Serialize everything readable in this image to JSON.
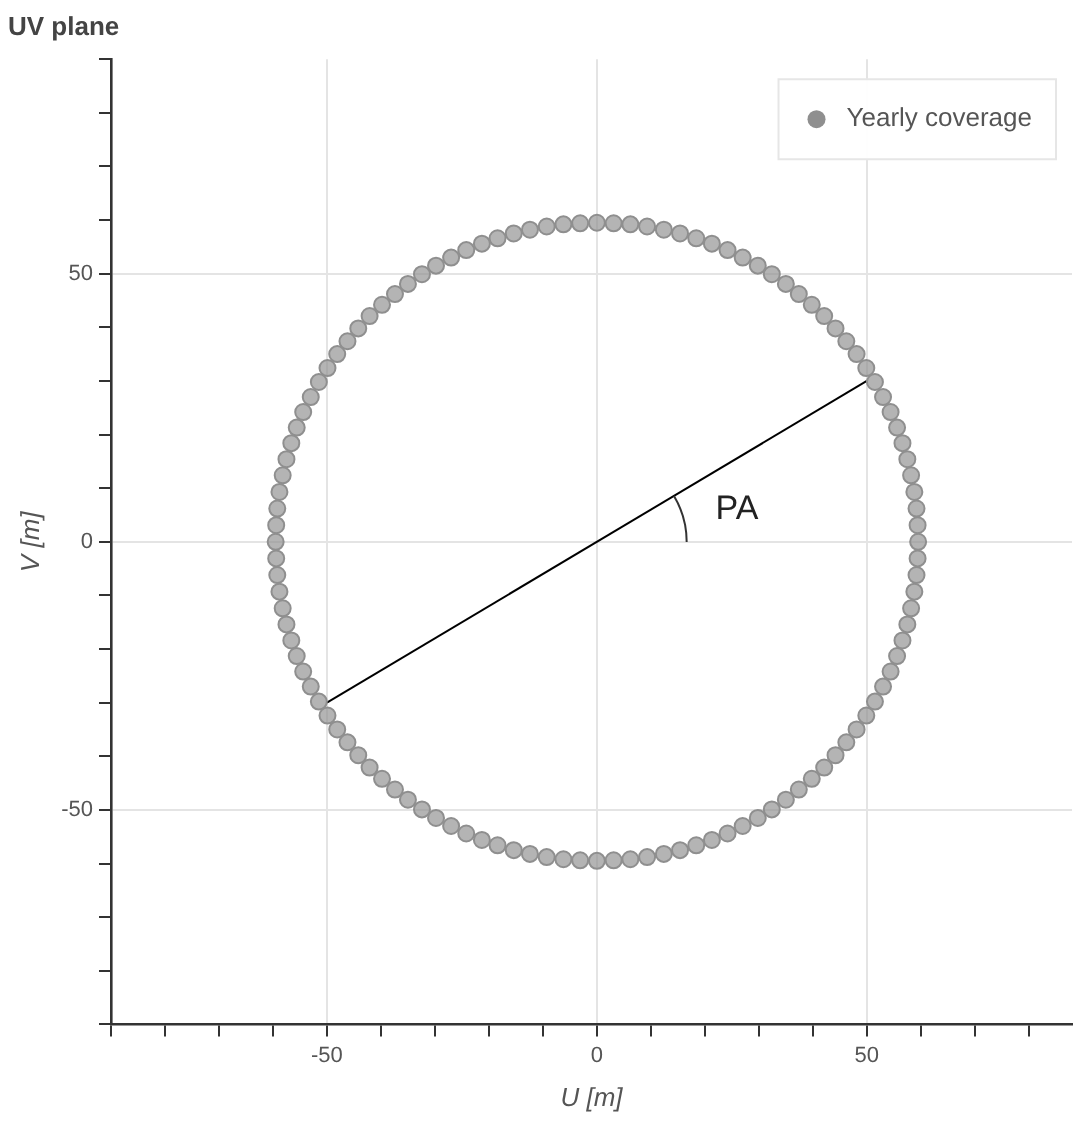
{
  "chart_data": {
    "type": "scatter",
    "title": "UV plane",
    "xlabel": "U [m]",
    "ylabel": "V [m]",
    "xlim": [
      -90,
      88
    ],
    "ylim": [
      -90,
      90
    ],
    "xticks": [
      {
        "value": -90,
        "label": null
      },
      {
        "value": -80,
        "label": null
      },
      {
        "value": -70,
        "label": null
      },
      {
        "value": -60,
        "label": null
      },
      -50,
      {
        "value": -40,
        "label": null
      },
      {
        "value": -30,
        "label": null
      },
      {
        "value": -20,
        "label": null
      },
      {
        "value": -10,
        "label": null
      },
      0,
      {
        "value": 10,
        "label": null
      },
      {
        "value": 20,
        "label": null
      },
      {
        "value": 30,
        "label": null
      },
      {
        "value": 40,
        "label": null
      },
      50,
      {
        "value": 60,
        "label": null
      },
      {
        "value": 70,
        "label": null
      },
      {
        "value": 80,
        "label": null
      }
    ],
    "yticks": [
      {
        "value": -90,
        "label": null
      },
      {
        "value": -80,
        "label": null
      },
      {
        "value": -70,
        "label": null
      },
      {
        "value": -60,
        "label": null
      },
      -50,
      {
        "value": -40,
        "label": null
      },
      {
        "value": -30,
        "label": null
      },
      {
        "value": -20,
        "label": null
      },
      {
        "value": -10,
        "label": null
      },
      0,
      {
        "value": 10,
        "label": null
      },
      {
        "value": 20,
        "label": null
      },
      {
        "value": 30,
        "label": null
      },
      {
        "value": 40,
        "label": null
      },
      50,
      {
        "value": 60,
        "label": null
      },
      {
        "value": 70,
        "label": null
      },
      {
        "value": 80,
        "label": null
      },
      {
        "value": 90,
        "label": null
      }
    ],
    "grid": true,
    "legend": "top right",
    "series": [
      {
        "name": "Yearly coverage",
        "marker": "circle",
        "color": "#8f8f8f",
        "x": [
          59.5,
          59.4,
          59.2,
          58.8,
          58.2,
          57.5,
          56.6,
          55.6,
          54.4,
          53.0,
          51.5,
          49.9,
          48.1,
          46.2,
          44.2,
          42.1,
          39.8,
          37.4,
          35.0,
          32.4,
          29.8,
          27.0,
          24.2,
          21.3,
          18.4,
          15.4,
          12.4,
          9.3,
          6.2,
          3.1,
          0,
          -3.1,
          -6.2,
          -9.3,
          -12.4,
          -15.4,
          -18.4,
          -21.3,
          -24.2,
          -27.0,
          -29.8,
          -32.4,
          -35.0,
          -37.4,
          -39.8,
          -42.1,
          -44.2,
          -46.2,
          -48.1,
          -49.9,
          -51.5,
          -53.0,
          -54.4,
          -55.6,
          -56.6,
          -57.5,
          -58.2,
          -58.8,
          -59.2,
          -59.4,
          -59.5,
          -59.4,
          -59.2,
          -58.8,
          -58.2,
          -57.5,
          -56.6,
          -55.6,
          -54.4,
          -53.0,
          -51.5,
          -49.9,
          -48.1,
          -46.2,
          -44.2,
          -42.1,
          -39.8,
          -37.4,
          -35.0,
          -32.4,
          -29.8,
          -27.0,
          -24.2,
          -21.3,
          -18.4,
          -15.4,
          -12.4,
          -9.3,
          -6.2,
          -3.1,
          0,
          3.1,
          6.2,
          9.3,
          12.4,
          15.4,
          18.4,
          21.3,
          24.2,
          27.0,
          29.8,
          32.4,
          35.0,
          37.4,
          39.8,
          42.1,
          44.2,
          46.2,
          48.1,
          49.9,
          51.5,
          53.0,
          54.4,
          55.6,
          56.6,
          57.5,
          58.2,
          58.8,
          59.2,
          59.4
        ],
        "values": [
          0,
          3.1,
          6.2,
          9.3,
          12.4,
          15.4,
          18.4,
          21.3,
          24.2,
          27.0,
          29.8,
          32.4,
          35.0,
          37.4,
          39.8,
          42.1,
          44.2,
          46.2,
          48.1,
          49.9,
          51.5,
          53.0,
          54.4,
          55.6,
          56.6,
          57.5,
          58.2,
          58.8,
          59.2,
          59.4,
          59.5,
          59.4,
          59.2,
          58.8,
          58.2,
          57.5,
          56.6,
          55.6,
          54.4,
          53.0,
          51.5,
          49.9,
          48.1,
          46.2,
          44.2,
          42.1,
          39.8,
          37.4,
          35.0,
          32.4,
          29.8,
          27.0,
          24.2,
          21.3,
          18.4,
          15.4,
          12.4,
          9.3,
          6.2,
          3.1,
          0,
          -3.1,
          -6.2,
          -9.3,
          -12.4,
          -15.4,
          -18.4,
          -21.3,
          -24.2,
          -27.0,
          -29.8,
          -32.4,
          -35.0,
          -37.4,
          -39.8,
          -42.1,
          -44.2,
          -46.2,
          -48.1,
          -49.9,
          -51.5,
          -53.0,
          -54.4,
          -55.6,
          -56.6,
          -57.5,
          -58.2,
          -58.8,
          -59.2,
          -59.4,
          -59.5,
          -59.4,
          -59.2,
          -58.8,
          -58.2,
          -57.5,
          -56.6,
          -55.6,
          -54.4,
          -53.0,
          -51.5,
          -49.9,
          -48.1,
          -46.2,
          -44.2,
          -42.1,
          -39.8,
          -37.4,
          -35.0,
          -32.4,
          -29.8,
          -27.0,
          -24.2,
          -21.3,
          -18.4,
          -15.4,
          -12.4,
          -9.3,
          -6.2,
          -3.1
        ]
      },
      {
        "type": "line",
        "marker": "none",
        "color": "#000000",
        "x": [
          -50,
          50
        ],
        "values": [
          -30,
          30
        ]
      }
    ],
    "annotations": [
      "PA"
    ]
  }
}
